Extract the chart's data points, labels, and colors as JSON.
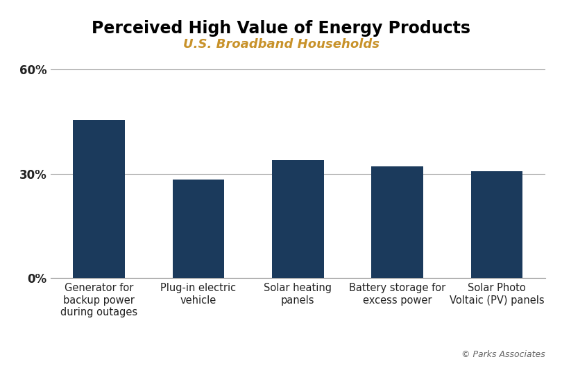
{
  "title": "Perceived High Value of Energy Products",
  "subtitle": "U.S. Broadband Households",
  "categories": [
    "Generator for\nbackup power\nduring outages",
    "Plug-in electric\nvehicle",
    "Solar heating\npanels",
    "Battery storage for\nexcess power",
    "Solar Photo\nVoltaic (PV) panels"
  ],
  "values": [
    0.455,
    0.283,
    0.338,
    0.32,
    0.307
  ],
  "bar_color": "#1b3a5c",
  "title_fontsize": 17,
  "subtitle_fontsize": 13,
  "subtitle_color": "#c8922a",
  "ylim": [
    0,
    0.62
  ],
  "yticks": [
    0.0,
    0.3,
    0.6
  ],
  "ytick_labels": [
    "0%",
    "30%",
    "60%"
  ],
  "background_color": "#ffffff",
  "watermark": "© Parks Associates",
  "bar_width": 0.52
}
